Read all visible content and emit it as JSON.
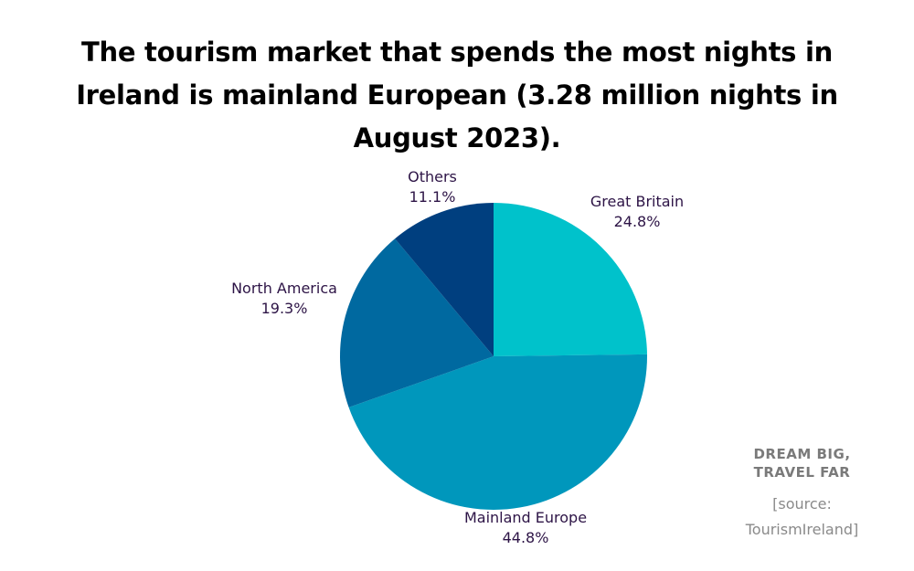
{
  "chart_data": {
    "type": "pie",
    "title": "The tourism market that spends the most nights in Ireland is mainland European (3.28 million nights in August 2023).",
    "slices": [
      {
        "label": "Great Britain",
        "value": 24.8,
        "display": "24.8%",
        "color": "#00C2CB"
      },
      {
        "label": "Mainland Europe",
        "value": 44.8,
        "display": "44.8%",
        "color": "#0097BC"
      },
      {
        "label": "North America",
        "value": 19.3,
        "display": "19.3%",
        "color": "#0069A0"
      },
      {
        "label": "Others",
        "value": 11.1,
        "display": "11.1%",
        "color": "#003F7F"
      }
    ],
    "start_angle": "12 o'clock",
    "direction": "clockwise"
  },
  "brand": {
    "line1": "DREAM BIG,",
    "line2": "TRAVEL FAR"
  },
  "source": {
    "line1": "[source:",
    "line2": "TourismIreland]"
  }
}
